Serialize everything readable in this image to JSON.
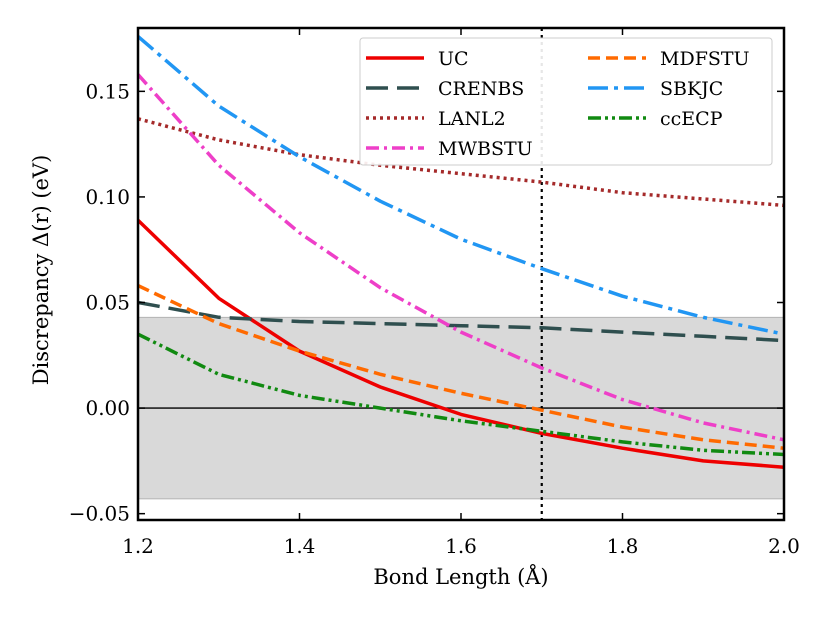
{
  "chart_data": {
    "type": "line",
    "xlabel": "Bond Length (Å)",
    "ylabel": "Discrepancy Δ(r) (eV)",
    "xlim": [
      1.2,
      2.0
    ],
    "ylim": [
      -0.053,
      0.18
    ],
    "x_ticks": [
      1.2,
      1.4,
      1.6,
      1.8,
      2.0
    ],
    "x_tick_labels": [
      "1.2",
      "1.4",
      "1.6",
      "1.8",
      "2.0"
    ],
    "y_ticks": [
      -0.05,
      0.0,
      0.05,
      0.1,
      0.15
    ],
    "y_tick_labels": [
      "−0.05",
      "0.00",
      "0.05",
      "0.10",
      "0.15"
    ],
    "shaded_band": [
      -0.043,
      0.043
    ],
    "horizontal_line": 0.0,
    "vertical_line": 1.7,
    "grid": false,
    "legend_position": "top-right",
    "x": [
      1.2,
      1.3,
      1.4,
      1.5,
      1.6,
      1.7,
      1.8,
      1.9,
      2.0
    ],
    "series": [
      {
        "name": "UC",
        "color": "#ee0000",
        "dash": "solid",
        "values": [
          0.089,
          0.052,
          0.027,
          0.01,
          -0.003,
          -0.012,
          -0.019,
          -0.025,
          -0.028
        ]
      },
      {
        "name": "CRENBS",
        "color": "#2f4f4f",
        "dash": "longdash",
        "values": [
          0.05,
          0.043,
          0.041,
          0.04,
          0.039,
          0.038,
          0.036,
          0.034,
          0.032
        ]
      },
      {
        "name": "LANL2",
        "color": "#a52a2a",
        "dash": "dot",
        "values": [
          0.137,
          0.127,
          0.12,
          0.115,
          0.111,
          0.107,
          0.102,
          0.099,
          0.096
        ]
      },
      {
        "name": "MWBSTU",
        "color": "#ee3fc8",
        "dash": "dashdot",
        "values": [
          0.158,
          0.115,
          0.083,
          0.057,
          0.036,
          0.019,
          0.004,
          -0.007,
          -0.015
        ]
      },
      {
        "name": "MDFSTU",
        "color": "#ff6a00",
        "dash": "dash",
        "values": [
          0.058,
          0.04,
          0.027,
          0.016,
          0.007,
          -0.001,
          -0.009,
          -0.015,
          -0.019
        ]
      },
      {
        "name": "SBKJC",
        "color": "#2196f3",
        "dash": "longdashdot",
        "values": [
          0.176,
          0.143,
          0.119,
          0.098,
          0.08,
          0.066,
          0.053,
          0.043,
          0.035
        ]
      },
      {
        "name": "ccECP",
        "color": "#118a11",
        "dash": "dashdotdot",
        "values": [
          0.035,
          0.016,
          0.006,
          0.0,
          -0.006,
          -0.011,
          -0.016,
          -0.02,
          -0.022
        ]
      }
    ]
  }
}
